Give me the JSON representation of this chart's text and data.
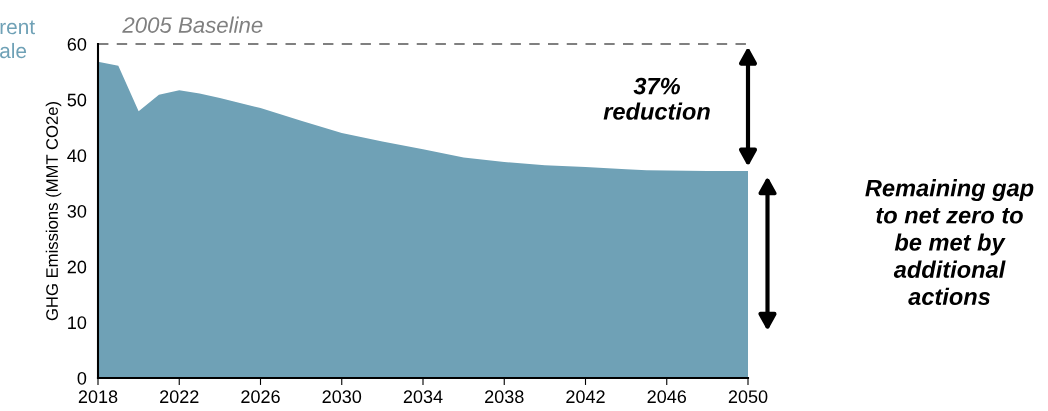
{
  "chart_data": {
    "type": "area",
    "ylabel": "GHG Emissions (MMT CO2e)",
    "x": [
      2018,
      2019,
      2020,
      2021,
      2022,
      2023,
      2024,
      2026,
      2028,
      2030,
      2032,
      2034,
      2036,
      2038,
      2040,
      2042,
      2044,
      2045,
      2048,
      2050
    ],
    "series": [
      {
        "color": "#6fa1b6",
        "values": [
          56.8,
          56.1,
          47.9,
          50.9,
          51.7,
          51.1,
          50.3,
          48.5,
          46.2,
          44.0,
          42.5,
          41.1,
          39.6,
          38.8,
          38.2,
          37.9,
          37.5,
          37.3,
          37.2,
          37.2
        ]
      }
    ],
    "xlim": [
      2018,
      2050
    ],
    "xticks": [
      2018,
      2022,
      2026,
      2030,
      2034,
      2038,
      2042,
      2046,
      2050
    ],
    "ylim": [
      0,
      60
    ],
    "yticks": [
      0,
      10,
      20,
      30,
      40,
      50,
      60
    ],
    "ref_lines": [
      {
        "axis": "y",
        "value": 60,
        "label": "2005 Baseline",
        "color": "#808080",
        "line_style": "dashed"
      }
    ],
    "annotations": [
      "37%\nreduction",
      "Remaining gap\nto net zero to\nbe met by\nadditional\nactions",
      "rent\nale"
    ],
    "grid": false
  }
}
